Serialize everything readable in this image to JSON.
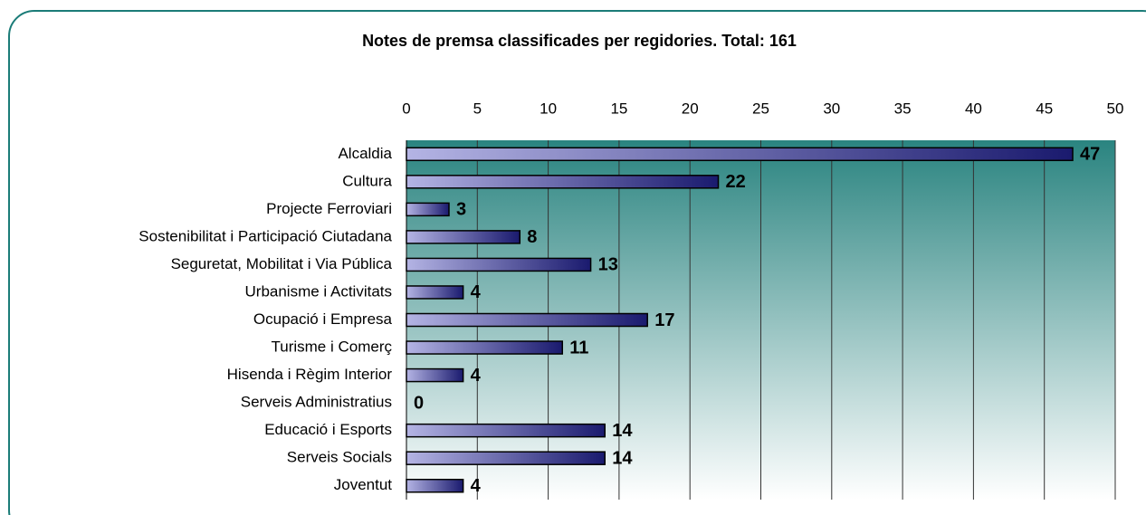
{
  "chart_data": {
    "type": "bar",
    "orientation": "horizontal",
    "title": "Notes de premsa classificades per regidories. Total: 161",
    "categories": [
      "Alcaldia",
      "Cultura",
      "Projecte Ferroviari",
      "Sostenibilitat i Participació Ciutadana",
      "Seguretat, Mobilitat i Via Pública",
      "Urbanisme i Activitats",
      "Ocupació i Empresa",
      "Turisme i Comerç",
      "Hisenda i Règim Interior",
      "Serveis Administratius",
      "Educació i Esports",
      "Serveis Socials",
      "Joventut"
    ],
    "values": [
      47,
      22,
      3,
      8,
      13,
      4,
      17,
      11,
      4,
      0,
      14,
      14,
      4
    ],
    "color": "#1a1a6e",
    "xlim": [
      0,
      50
    ],
    "xticks": [
      0,
      5,
      10,
      15,
      20,
      25,
      30,
      35,
      40,
      45,
      50
    ],
    "grid": true
  }
}
